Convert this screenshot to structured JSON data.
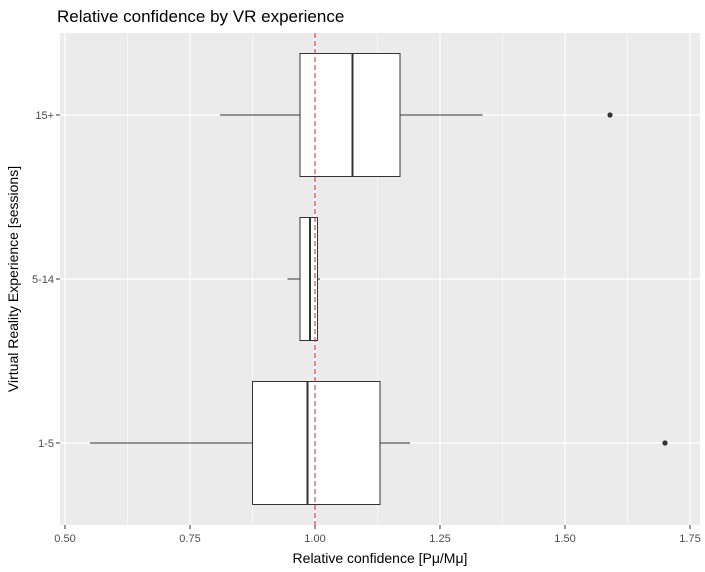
{
  "chart_data": {
    "type": "boxplot",
    "orientation": "horizontal",
    "title": "Relative confidence by VR experience",
    "xlabel": "Relative confidence [Pμ/Mμ]",
    "ylabel": "Virtual Reality Experience [sessions]",
    "xlim": [
      0.49,
      1.77
    ],
    "x_ticks": [
      0.5,
      0.75,
      1.0,
      1.25,
      1.5,
      1.75
    ],
    "x_tick_labels": [
      "0.50",
      "0.75",
      "1.00",
      "1.25",
      "1.50",
      "1.75"
    ],
    "categories": [
      "1-5",
      "5-14",
      "15+"
    ],
    "boxes": [
      {
        "category": "1-5",
        "whisker_low": 0.55,
        "q1": 0.875,
        "median": 0.985,
        "q3": 1.13,
        "whisker_high": 1.19,
        "outliers": [
          1.7
        ]
      },
      {
        "category": "5-14",
        "whisker_low": 0.945,
        "q1": 0.97,
        "median": 0.99,
        "q3": 1.005,
        "whisker_high": 1.01,
        "outliers": []
      },
      {
        "category": "15+",
        "whisker_low": 0.81,
        "q1": 0.97,
        "median": 1.075,
        "q3": 1.17,
        "whisker_high": 1.335,
        "outliers": [
          1.59
        ]
      }
    ],
    "reference_line": {
      "x": 1.0,
      "style": "dashed",
      "color": "#e41a1c"
    },
    "grid": true,
    "colors": {
      "panel": "#ebebeb",
      "grid": "#ffffff",
      "box_fill": "#ffffff",
      "box_stroke": "#333333"
    }
  }
}
